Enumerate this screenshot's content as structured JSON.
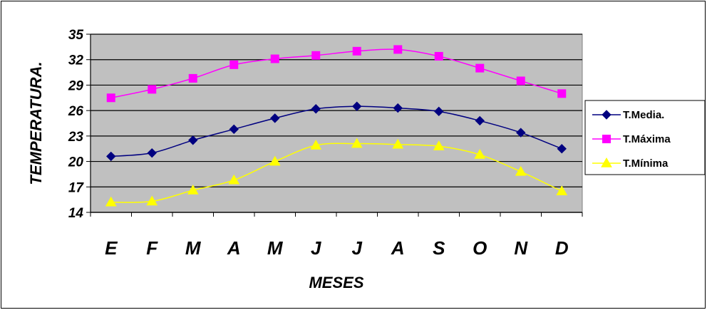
{
  "chart_data": {
    "type": "line",
    "title": "",
    "xlabel": "MESES",
    "ylabel": "TEMPERATURA.",
    "categories": [
      "E",
      "F",
      "M",
      "A",
      "M",
      "J",
      "J",
      "A",
      "S",
      "O",
      "N",
      "D"
    ],
    "ylim": [
      14,
      35
    ],
    "yticks": [
      "35",
      "32",
      "29",
      "26",
      "23",
      "20",
      "17",
      "14"
    ],
    "grid": true,
    "legend": "right",
    "plot_background": "#c0c0c0",
    "series": [
      {
        "name": "T.Media.",
        "color": "#000080",
        "marker": "diamond",
        "values": [
          20.6,
          21.0,
          22.5,
          23.8,
          25.1,
          26.2,
          26.5,
          26.3,
          25.9,
          24.8,
          23.4,
          21.5
        ]
      },
      {
        "name": "T.Máxima",
        "color": "#ff00ff",
        "marker": "square",
        "values": [
          27.5,
          28.5,
          29.8,
          31.4,
          32.1,
          32.5,
          33.0,
          33.2,
          32.4,
          31.0,
          29.5,
          28.0
        ]
      },
      {
        "name": "T.Mínima",
        "color": "#ffff00",
        "marker": "triangle",
        "values": [
          15.2,
          15.3,
          16.6,
          17.8,
          20.0,
          21.9,
          22.1,
          22.0,
          21.8,
          20.8,
          18.8,
          16.5
        ]
      }
    ]
  }
}
